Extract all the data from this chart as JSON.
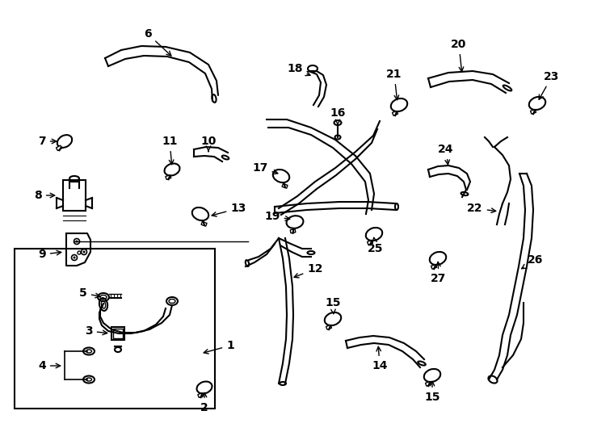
{
  "bg_color": "#ffffff",
  "line_color": "#000000",
  "fig_width": 7.34,
  "fig_height": 5.4,
  "dpi": 100
}
